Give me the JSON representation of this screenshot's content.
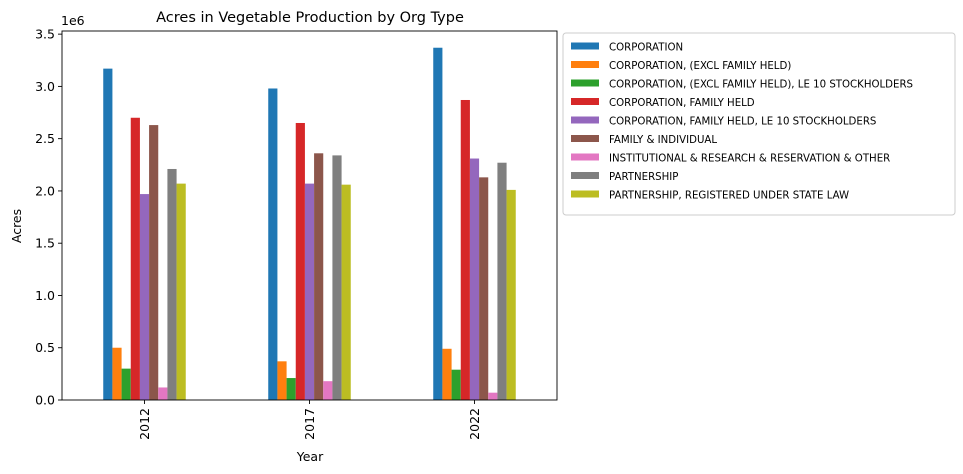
{
  "chart_data": {
    "type": "bar",
    "title": "Acres in Vegetable Production by Org Type",
    "xlabel": "Year",
    "ylabel": "Acres",
    "y_offset_label": "1e6",
    "categories": [
      "2012",
      "2017",
      "2022"
    ],
    "ylim": [
      0,
      3530000
    ],
    "yticks": [
      0,
      500000,
      1000000,
      1500000,
      2000000,
      2500000,
      3000000,
      3500000
    ],
    "ytick_labels": [
      "0.0",
      "0.5",
      "1.0",
      "1.5",
      "2.0",
      "2.5",
      "3.0",
      "3.5"
    ],
    "grid": false,
    "legend_position": "outside-right",
    "series": [
      {
        "name": "CORPORATION",
        "color": "#1f77b4",
        "values": [
          3170000,
          2980000,
          3370000
        ]
      },
      {
        "name": "CORPORATION, (EXCL FAMILY HELD)",
        "color": "#ff7f0e",
        "values": [
          500000,
          370000,
          490000
        ]
      },
      {
        "name": "CORPORATION, (EXCL FAMILY HELD), LE 10 STOCKHOLDERS",
        "color": "#2ca02c",
        "values": [
          300000,
          210000,
          290000
        ]
      },
      {
        "name": "CORPORATION, FAMILY HELD",
        "color": "#d62728",
        "values": [
          2700000,
          2650000,
          2870000
        ]
      },
      {
        "name": "CORPORATION, FAMILY HELD, LE 10 STOCKHOLDERS",
        "color": "#9467bd",
        "values": [
          1970000,
          2070000,
          2310000
        ]
      },
      {
        "name": "FAMILY & INDIVIDUAL",
        "color": "#8c564b",
        "values": [
          2630000,
          2360000,
          2130000
        ]
      },
      {
        "name": "INSTITUTIONAL & RESEARCH & RESERVATION & OTHER",
        "color": "#e377c2",
        "values": [
          120000,
          180000,
          70000
        ]
      },
      {
        "name": "PARTNERSHIP",
        "color": "#7f7f7f",
        "values": [
          2210000,
          2340000,
          2270000
        ]
      },
      {
        "name": "PARTNERSHIP, REGISTERED UNDER STATE LAW",
        "color": "#bcbd22",
        "values": [
          2070000,
          2060000,
          2010000
        ]
      }
    ]
  }
}
